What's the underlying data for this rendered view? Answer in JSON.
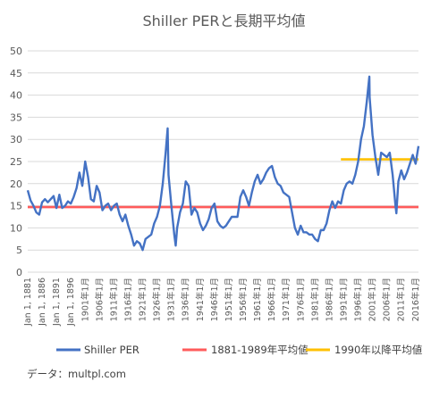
{
  "source_note": "データ：multpl.com",
  "chart_data": {
    "type": "line",
    "title": "Shiller PERと長期平均値",
    "xlabel": "",
    "ylabel": "",
    "ylim": [
      0,
      50
    ],
    "yticks": [
      0,
      5,
      10,
      15,
      20,
      25,
      30,
      35,
      40,
      45,
      50
    ],
    "xlim": [
      1881,
      2017
    ],
    "grid": true,
    "legend_position": "bottom",
    "x_tick_labels": [
      "Jan 1, 1881",
      "Jan 1, 1886",
      "Jan 1, 1891",
      "Jan 1, 1896",
      "1901年1月",
      "1906年1月",
      "1911年1月",
      "1916年1月",
      "1921年1月",
      "1926年1月",
      "1931年1月",
      "1936年1月",
      "1941年1月",
      "1946年1月",
      "1951年1月",
      "1956年1月",
      "1961年1月",
      "1966年1月",
      "1971年1月",
      "1976年1月",
      "1981年1月",
      "1986年1月",
      "1991年1月",
      "1996年1月",
      "2001年1月",
      "2006年1月",
      "2011年1月",
      "2016年1月"
    ],
    "x_tick_positions": [
      1881,
      1886,
      1891,
      1896,
      1901,
      1906,
      1911,
      1916,
      1921,
      1926,
      1931,
      1936,
      1941,
      1946,
      1951,
      1956,
      1961,
      1966,
      1971,
      1976,
      1981,
      1986,
      1991,
      1996,
      2001,
      2006,
      2011,
      2016
    ],
    "series": [
      {
        "name": "Shiller PER",
        "color": "#4472c4",
        "x": [
          1881,
          1882,
          1883,
          1884,
          1885,
          1886,
          1887,
          1888,
          1889,
          1890,
          1891,
          1892,
          1893,
          1894,
          1895,
          1896,
          1897,
          1898,
          1899,
          1900,
          1901,
          1902,
          1903,
          1904,
          1905,
          1906,
          1907,
          1908,
          1909,
          1910,
          1911,
          1912,
          1913,
          1914,
          1915,
          1916,
          1917,
          1918,
          1919,
          1920,
          1921,
          1922,
          1923,
          1924,
          1925,
          1926,
          1927,
          1928,
          1929,
          1929.7,
          1930,
          1931,
          1932,
          1932.5,
          1933,
          1934,
          1935,
          1936,
          1937,
          1938,
          1939,
          1940,
          1941,
          1942,
          1943,
          1944,
          1945,
          1946,
          1947,
          1948,
          1949,
          1950,
          1951,
          1952,
          1953,
          1954,
          1955,
          1956,
          1957,
          1958,
          1959,
          1960,
          1961,
          1962,
          1963,
          1964,
          1965,
          1966,
          1967,
          1968,
          1969,
          1970,
          1971,
          1972,
          1973,
          1974,
          1975,
          1976,
          1977,
          1978,
          1979,
          1980,
          1981,
          1982,
          1983,
          1984,
          1985,
          1986,
          1987,
          1988,
          1989,
          1990,
          1991,
          1992,
          1993,
          1994,
          1995,
          1996,
          1997,
          1998,
          1999,
          1999.9,
          2000,
          2001,
          2002,
          2003,
          2004,
          2005,
          2006,
          2007,
          2008,
          2009,
          2009.3,
          2010,
          2011,
          2012,
          2013,
          2014,
          2015,
          2016,
          2017
        ],
        "values": [
          18.5,
          16.2,
          15.0,
          13.5,
          13.0,
          15.8,
          16.5,
          15.8,
          16.5,
          17.2,
          14.5,
          17.5,
          14.5,
          15.0,
          16.0,
          15.5,
          17.0,
          19.0,
          22.5,
          19.5,
          25.0,
          21.5,
          16.5,
          16.0,
          19.5,
          18.0,
          14.0,
          15.0,
          15.5,
          14.0,
          15.0,
          15.5,
          13.0,
          11.5,
          13.0,
          10.5,
          8.5,
          6.0,
          7.0,
          6.5,
          5.0,
          7.5,
          8.0,
          8.5,
          11.0,
          12.5,
          15.0,
          20.0,
          27.0,
          32.5,
          22.0,
          15.0,
          8.5,
          6.0,
          10.0,
          13.5,
          15.5,
          20.5,
          19.5,
          13.0,
          14.5,
          13.5,
          11.0,
          9.5,
          10.5,
          12.0,
          14.5,
          15.5,
          11.5,
          10.5,
          10.0,
          10.5,
          11.5,
          12.5,
          12.5,
          12.5,
          17.0,
          18.5,
          17.0,
          15.0,
          18.0,
          20.5,
          22.0,
          20.0,
          21.0,
          22.5,
          23.5,
          24.0,
          21.5,
          20.0,
          19.5,
          18.0,
          17.5,
          17.0,
          13.5,
          10.0,
          8.5,
          10.5,
          9.0,
          9.0,
          8.5,
          8.5,
          7.5,
          7.0,
          9.5,
          9.5,
          11.0,
          14.0,
          16.0,
          14.5,
          16.0,
          15.5,
          18.5,
          20.0,
          20.5,
          20.0,
          22.0,
          25.0,
          30.0,
          33.0,
          38.5,
          44.2,
          39.5,
          31.0,
          26.0,
          22.0,
          27.0,
          26.5,
          26.0,
          27.0,
          22.0,
          15.0,
          13.3,
          20.5,
          23.0,
          21.0,
          22.5,
          24.5,
          26.5,
          24.5,
          28.5
        ]
      },
      {
        "name": "1881-1989年平均値",
        "color": "#ff5b5b",
        "x": [
          1881,
          2017
        ],
        "values": [
          14.7,
          14.7
        ]
      },
      {
        "name": "1990年以降平均値",
        "color": "#ffc000",
        "x": [
          1990,
          2017
        ],
        "values": [
          25.5,
          25.5
        ]
      }
    ]
  }
}
